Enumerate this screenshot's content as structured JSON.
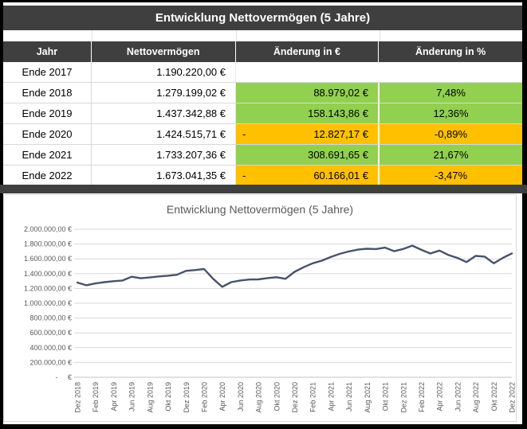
{
  "app": {
    "frame_color": "#000000",
    "accent_dark": "#3f3f3f",
    "positive_color": "#92d050",
    "negative_color": "#ffc000",
    "minus_sign": "-"
  },
  "table": {
    "title": "Entwicklung Nettovermögen (5 Jahre)",
    "columns": [
      "Jahr",
      "Nettovermögen",
      "Änderung in €",
      "Änderung in %"
    ],
    "rows": [
      {
        "year": "Ende 2017",
        "net": "1.190.220,00 €",
        "change": "",
        "pct": "",
        "trend": "none"
      },
      {
        "year": "Ende 2018",
        "net": "1.279.199,02 €",
        "change": "88.979,02 €",
        "pct": "7,48%",
        "trend": "positive"
      },
      {
        "year": "Ende 2019",
        "net": "1.437.342,88 €",
        "change": "158.143,86 €",
        "pct": "12,36%",
        "trend": "positive"
      },
      {
        "year": "Ende 2020",
        "net": "1.424.515,71 €",
        "change": "12.827,17 €",
        "pct": "-0,89%",
        "trend": "negative"
      },
      {
        "year": "Ende 2021",
        "net": "1.733.207,36 €",
        "change": "308.691,65 €",
        "pct": "21,67%",
        "trend": "positive"
      },
      {
        "year": "Ende 2022",
        "net": "1.673.041,35 €",
        "change": "60.166,01 €",
        "pct": "-3,47%",
        "trend": "negative"
      }
    ]
  },
  "chart_data": {
    "type": "line",
    "title": "Entwicklung Nettovermögen (5 Jahre)",
    "line_color": "#44546a",
    "grid": "horizontal",
    "legend": "none",
    "ylim": [
      0,
      2000000
    ],
    "y_step": 200000,
    "y_tick_labels": [
      "2.000.000,00 €",
      "1.800.000,00 €",
      "1.600.000,00 €",
      "1.400.000,00 €",
      "1.200.000,00 €",
      "1.000.000,00 €",
      "800.000,00 €",
      "600.000,00 €",
      "400.000,00 €",
      "200.000,00 €",
      "-     €"
    ],
    "x_tick_labels": [
      "Dez 2018",
      "Feb 2019",
      "Apr 2019",
      "Jun 2019",
      "Aug 2019",
      "Okt 2019",
      "Dez 2019",
      "Feb 2020",
      "Apr 2020",
      "Jun 2020",
      "Aug 2020",
      "Okt 2020",
      "Dez 2020",
      "Feb 2021",
      "Apr 2021",
      "Jun 2021",
      "Aug 2021",
      "Okt 2021",
      "Dez 2021",
      "Feb 2022",
      "Apr 2022",
      "Jun 2022",
      "Aug 2022",
      "Okt 2022",
      "Dez 2022"
    ],
    "x": [
      "Dez 2018",
      "Jan 2019",
      "Feb 2019",
      "Mär 2019",
      "Apr 2019",
      "Mai 2019",
      "Jun 2019",
      "Jul 2019",
      "Aug 2019",
      "Sep 2019",
      "Okt 2019",
      "Nov 2019",
      "Dez 2019",
      "Jan 2020",
      "Feb 2020",
      "Mär 2020",
      "Apr 2020",
      "Mai 2020",
      "Jun 2020",
      "Jul 2020",
      "Aug 2020",
      "Sep 2020",
      "Okt 2020",
      "Nov 2020",
      "Dez 2020",
      "Jan 2021",
      "Feb 2021",
      "Mär 2021",
      "Apr 2021",
      "Mai 2021",
      "Jun 2021",
      "Jul 2021",
      "Aug 2021",
      "Sep 2021",
      "Okt 2021",
      "Nov 2021",
      "Dez 2021",
      "Jan 2022",
      "Feb 2022",
      "Mär 2022",
      "Apr 2022",
      "Mai 2022",
      "Jun 2022",
      "Jul 2022",
      "Aug 2022",
      "Sep 2022",
      "Okt 2022",
      "Nov 2022",
      "Dez 2022"
    ],
    "values": [
      1279199,
      1243000,
      1268000,
      1285000,
      1298000,
      1307000,
      1358000,
      1338000,
      1348000,
      1362000,
      1372000,
      1385000,
      1437343,
      1448000,
      1462000,
      1330000,
      1222000,
      1285000,
      1308000,
      1320000,
      1323000,
      1340000,
      1352000,
      1330000,
      1424516,
      1487000,
      1540000,
      1575000,
      1625000,
      1668000,
      1700000,
      1725000,
      1737000,
      1732000,
      1752000,
      1703000,
      1733207,
      1778000,
      1722000,
      1672000,
      1712000,
      1652000,
      1612000,
      1556000,
      1640000,
      1630000,
      1540000,
      1612000,
      1673041
    ]
  }
}
